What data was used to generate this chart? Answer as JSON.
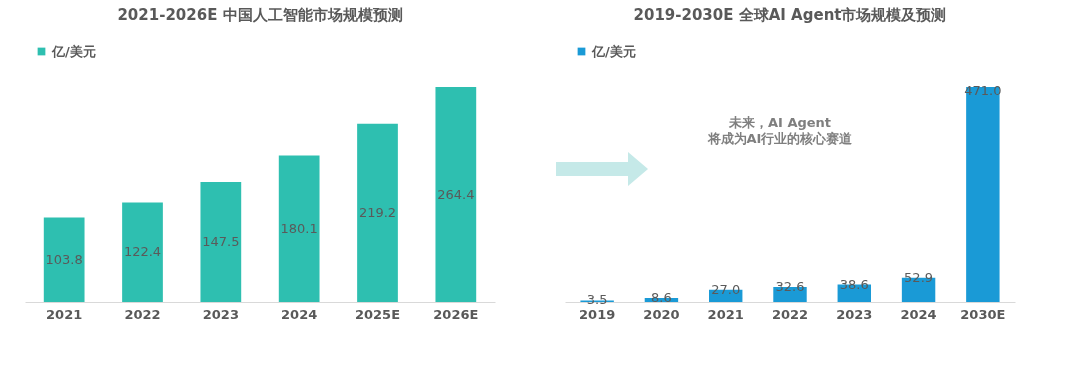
{
  "chart_data": [
    {
      "type": "bar",
      "title": "2021-2026E 中国人工智能市场规模预测",
      "categories": [
        "2021",
        "2022",
        "2023",
        "2024",
        "2025E",
        "2026E"
      ],
      "series": [
        {
          "name": "亿/美元",
          "color": "#2ebfb0",
          "values": [
            103.8,
            122.4,
            147.5,
            180.1,
            219.2,
            264.4
          ],
          "value_labels": [
            "103.8",
            "122.4",
            "147.5",
            "180.1",
            "219.2",
            "264.4"
          ]
        }
      ],
      "legend": "top",
      "grid": false
    },
    {
      "type": "bar",
      "title": "2019-2030E 全球AI Agent市场规模及预测",
      "categories": [
        "2019",
        "2020",
        "2021",
        "2022",
        "2023",
        "2024",
        "2030E"
      ],
      "series": [
        {
          "name": "亿/美元",
          "color": "#1a9ad6",
          "values": [
            3.5,
            8.6,
            27.0,
            32.6,
            38.6,
            52.9,
            471.0
          ],
          "value_labels": [
            "3.5",
            "8.6",
            "27.0",
            "32.6",
            "38.6",
            "52.9",
            "471.0"
          ]
        }
      ],
      "legend": "top",
      "grid": false,
      "annotations": [
        "未来，AI Agent",
        "将成为AI行业的核心赛道"
      ]
    }
  ]
}
